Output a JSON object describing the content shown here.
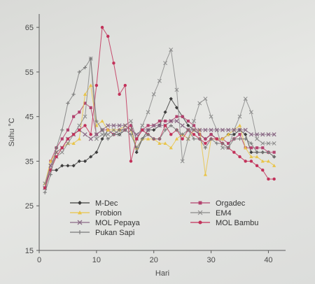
{
  "chart_data": {
    "type": "line",
    "xlabel": "Hari",
    "ylabel": "Suhu °C",
    "xlim": [
      0,
      43
    ],
    "ylim": [
      15,
      68
    ],
    "xticks": [
      0,
      10,
      20,
      30,
      40
    ],
    "yticks": [
      15,
      25,
      35,
      45,
      55,
      65
    ],
    "grid": false,
    "legend_position": "inside-bottom",
    "series": [
      {
        "name": "M-Dec",
        "color": "#3d3d3d",
        "marker": "diamond",
        "x": [
          1,
          2,
          3,
          4,
          5,
          6,
          7,
          8,
          9,
          10,
          11,
          12,
          13,
          14,
          15,
          16,
          17,
          18,
          19,
          20,
          21,
          22,
          23,
          24,
          25,
          26,
          27,
          28,
          29,
          30,
          31,
          32,
          33,
          34,
          35,
          36,
          37,
          38,
          39,
          40,
          41
        ],
        "y": [
          29,
          33,
          33,
          34,
          34,
          34,
          35,
          35,
          36,
          37,
          40,
          42,
          41,
          41,
          42,
          43,
          37,
          40,
          42,
          42,
          43,
          46,
          49,
          47,
          45,
          43,
          42,
          41,
          40,
          41,
          40,
          40,
          41,
          41,
          42,
          41,
          37,
          37,
          37,
          37,
          36
        ]
      },
      {
        "name": "Orgadec",
        "color": "#b3426e",
        "marker": "square",
        "x": [
          1,
          2,
          3,
          4,
          5,
          6,
          7,
          8,
          9,
          10,
          11,
          12,
          13,
          14,
          15,
          16,
          17,
          18,
          19,
          20,
          21,
          22,
          23,
          24,
          25,
          26,
          27,
          28,
          29,
          30,
          31,
          32,
          33,
          34,
          35,
          36,
          37,
          38,
          39,
          40,
          41
        ],
        "y": [
          29,
          35,
          38,
          40,
          42,
          45,
          46,
          48,
          47,
          41,
          42,
          42,
          41,
          42,
          42,
          43,
          40,
          42,
          43,
          43,
          44,
          44,
          44,
          45,
          45,
          44,
          43,
          41,
          40,
          41,
          40,
          40,
          39,
          40,
          41,
          38,
          38,
          38,
          38,
          37,
          37
        ]
      },
      {
        "name": "Probion",
        "color": "#e9c448",
        "marker": "triangle",
        "x": [
          1,
          2,
          3,
          4,
          5,
          6,
          7,
          8,
          9,
          10,
          11,
          12,
          13,
          14,
          15,
          16,
          17,
          18,
          19,
          20,
          21,
          22,
          23,
          24,
          25,
          26,
          27,
          28,
          29,
          30,
          31,
          32,
          33,
          34,
          35,
          36,
          37,
          38,
          39,
          40,
          41
        ],
        "y": [
          30,
          35,
          37,
          38,
          39,
          39,
          40,
          50,
          52,
          43,
          44,
          42,
          42,
          42,
          43,
          42,
          38,
          40,
          40,
          40,
          39,
          39,
          38,
          40,
          41,
          40,
          42,
          42,
          32,
          40,
          40,
          40,
          41,
          42,
          43,
          38,
          36,
          36,
          35,
          35,
          34
        ]
      },
      {
        "name": "EM4",
        "color": "#8a8a8a",
        "marker": "cross",
        "x": [
          1,
          2,
          3,
          4,
          5,
          6,
          7,
          8,
          9,
          10,
          11,
          12,
          13,
          14,
          15,
          16,
          17,
          18,
          19,
          20,
          21,
          22,
          23,
          24,
          25,
          26,
          27,
          28,
          29,
          30,
          31,
          32,
          33,
          34,
          35,
          36,
          37,
          38,
          39,
          40,
          41
        ],
        "y": [
          30,
          34,
          36,
          37,
          39,
          41,
          43,
          45,
          58,
          40,
          41,
          41,
          42,
          41,
          43,
          44,
          40,
          43,
          46,
          50,
          53,
          57,
          60,
          51,
          35,
          40,
          44,
          48,
          49,
          45,
          42,
          38,
          38,
          42,
          45,
          49,
          46,
          40,
          39,
          39,
          39
        ]
      },
      {
        "name": "MOL Pepaya",
        "color": "#8a6a86",
        "marker": "x",
        "x": [
          1,
          2,
          3,
          4,
          5,
          6,
          7,
          8,
          9,
          10,
          11,
          12,
          13,
          14,
          15,
          16,
          17,
          18,
          19,
          20,
          21,
          22,
          23,
          24,
          25,
          26,
          27,
          28,
          29,
          30,
          31,
          32,
          33,
          34,
          35,
          36,
          37,
          38,
          39,
          40,
          41
        ],
        "y": [
          29,
          34,
          37,
          38,
          40,
          41,
          42,
          41,
          40,
          41,
          42,
          43,
          43,
          43,
          43,
          42,
          41,
          42,
          42,
          43,
          43,
          43,
          44,
          44,
          43,
          42,
          42,
          42,
          42,
          42,
          42,
          42,
          42,
          42,
          42,
          42,
          41,
          41,
          41,
          41,
          41
        ]
      },
      {
        "name": "MOL Bambu",
        "color": "#c2325a",
        "marker": "circle",
        "x": [
          1,
          2,
          3,
          4,
          5,
          6,
          7,
          8,
          9,
          10,
          11,
          12,
          13,
          14,
          15,
          16,
          17,
          18,
          19,
          20,
          21,
          22,
          23,
          24,
          25,
          26,
          27,
          28,
          29,
          30,
          31,
          32,
          33,
          34,
          35,
          36,
          37,
          38,
          39,
          40,
          41
        ],
        "y": [
          29,
          33,
          36,
          38,
          40,
          41,
          42,
          43,
          41,
          52,
          65,
          63,
          57,
          50,
          52,
          35,
          40,
          42,
          41,
          40,
          40,
          43,
          41,
          42,
          40,
          42,
          41,
          40,
          39,
          40,
          40,
          39,
          38,
          37,
          36,
          35,
          35,
          34,
          33,
          31,
          31
        ]
      },
      {
        "name": "Pukan Sapi",
        "color": "#7a7a7a",
        "marker": "plus",
        "x": [
          1,
          2,
          3,
          4,
          5,
          6,
          7,
          8,
          9,
          10,
          11,
          12,
          13,
          14,
          15,
          16,
          17,
          18,
          19,
          20,
          21,
          22,
          23,
          24,
          25,
          26,
          27,
          28,
          29,
          30,
          31,
          32,
          33,
          34,
          35,
          36,
          37,
          38,
          39,
          40,
          41
        ],
        "y": [
          28,
          32,
          38,
          42,
          48,
          50,
          55,
          56,
          58,
          44,
          42,
          40,
          41,
          42,
          42,
          41,
          38,
          40,
          41,
          40,
          40,
          42,
          43,
          42,
          41,
          42,
          40,
          40,
          38,
          40,
          39,
          39,
          38,
          40,
          40,
          40,
          39,
          37,
          37,
          37,
          36
        ]
      }
    ]
  }
}
